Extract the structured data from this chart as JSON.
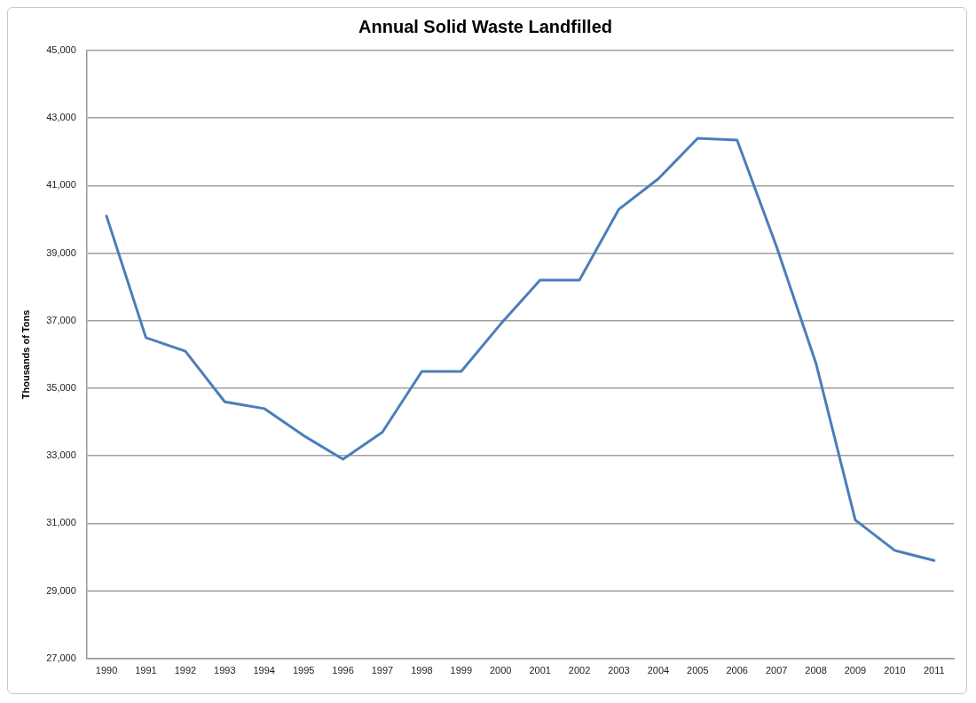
{
  "chart_data": {
    "type": "line",
    "title": "Annual Solid Waste Landfilled",
    "ylabel": "Thousands of Tons",
    "categories": [
      "1990",
      "1991",
      "1992",
      "1993",
      "1994",
      "1995",
      "1996",
      "1997",
      "1998",
      "1999",
      "2000",
      "2001",
      "2002",
      "2003",
      "2004",
      "2005",
      "2006",
      "2007",
      "2008",
      "2009",
      "2010",
      "2011"
    ],
    "series": [
      {
        "color": "#4a7ebb",
        "values": [
          40100,
          36500,
          36100,
          34600,
          34400,
          33600,
          32900,
          33700,
          35500,
          35500,
          36900,
          38200,
          38200,
          40300,
          41200,
          42400,
          42350,
          39200,
          35750,
          31100,
          30200,
          29900
        ]
      }
    ],
    "ylim": [
      27000,
      45000
    ],
    "yticks": [
      {
        "value": 27000,
        "label": "27,000"
      },
      {
        "value": 29000,
        "label": "29,000"
      },
      {
        "value": 31000,
        "label": "31,000"
      },
      {
        "value": 33000,
        "label": "33,000"
      },
      {
        "value": 35000,
        "label": "35,000"
      },
      {
        "value": 37000,
        "label": "37,000"
      },
      {
        "value": 39000,
        "label": "39,000"
      },
      {
        "value": 41000,
        "label": "41,000"
      },
      {
        "value": 43000,
        "label": "43,000"
      },
      {
        "value": 45000,
        "label": "45,000"
      }
    ],
    "grid": "y",
    "legend": false,
    "marker": "none",
    "line_style": "solid"
  }
}
